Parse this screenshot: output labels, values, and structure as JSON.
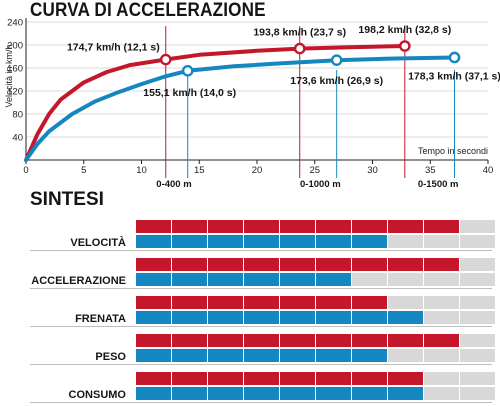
{
  "header": {
    "title": "CURVA DI ACCELERAZIONE"
  },
  "colors": {
    "red": "#c4172b",
    "blue": "#1587c0",
    "gray": "#d8d8d8",
    "axis": "#222222"
  },
  "chart_data": {
    "type": "line",
    "xlabel": "Tempo in secondi",
    "ylabel": "Velocità in km/h",
    "xlim": [
      0,
      40
    ],
    "ylim": [
      0,
      240
    ],
    "xticks": [
      0,
      5,
      10,
      15,
      20,
      25,
      30,
      35,
      40
    ],
    "yticks": [
      40,
      80,
      120,
      160,
      200,
      240
    ],
    "series": [
      {
        "color": "#c4172b",
        "x": [
          0,
          1,
          2,
          3,
          5,
          7,
          9,
          12.1,
          15,
          20,
          23.7,
          28,
          32.8
        ],
        "y": [
          0,
          45,
          80,
          105,
          135,
          153,
          165,
          174.7,
          183,
          190,
          193.8,
          196,
          198.2
        ],
        "markers": [
          {
            "x": 12.1,
            "y": 174.7,
            "label": "174,7 km/h (12,1 s)"
          },
          {
            "x": 23.7,
            "y": 193.8,
            "label": "193,8 km/h (23,7 s)"
          },
          {
            "x": 32.8,
            "y": 198.2,
            "label": "198,2 km/h (32,8 s)"
          }
        ]
      },
      {
        "color": "#1587c0",
        "x": [
          0,
          1,
          2,
          4,
          6,
          8,
          10,
          12,
          14,
          18,
          22,
          26.9,
          32,
          37.1
        ],
        "y": [
          0,
          28,
          50,
          80,
          102,
          118,
          132,
          145,
          155.1,
          163,
          168,
          173.6,
          176.5,
          178.3
        ],
        "markers": [
          {
            "x": 14,
            "y": 155.1,
            "label": "155,1 km/h (14,0 s)"
          },
          {
            "x": 26.9,
            "y": 173.6,
            "label": "173,6 km/h (26,9 s)"
          },
          {
            "x": 37.1,
            "y": 178.3,
            "label": "178,3 km/h (37,1 s)"
          }
        ]
      }
    ],
    "distance_markers": [
      {
        "label": "0-400 m",
        "red_x": 12.1,
        "blue_x": 14
      },
      {
        "label": "0-1000 m",
        "red_x": 23.7,
        "blue_x": 26.9
      },
      {
        "label": "0-1500 m",
        "red_x": 32.8,
        "blue_x": 37.1
      }
    ]
  },
  "summary": {
    "title": "SINTESI",
    "max": 10,
    "rows": [
      {
        "label": "VELOCITÀ",
        "red": 9,
        "blue": 7
      },
      {
        "label": "ACCELERAZIONE",
        "red": 9,
        "blue": 6
      },
      {
        "label": "FRENATA",
        "red": 7,
        "blue": 8
      },
      {
        "label": "PESO",
        "red": 9,
        "blue": 7
      },
      {
        "label": "CONSUMO",
        "red": 8,
        "blue": 8
      }
    ]
  }
}
